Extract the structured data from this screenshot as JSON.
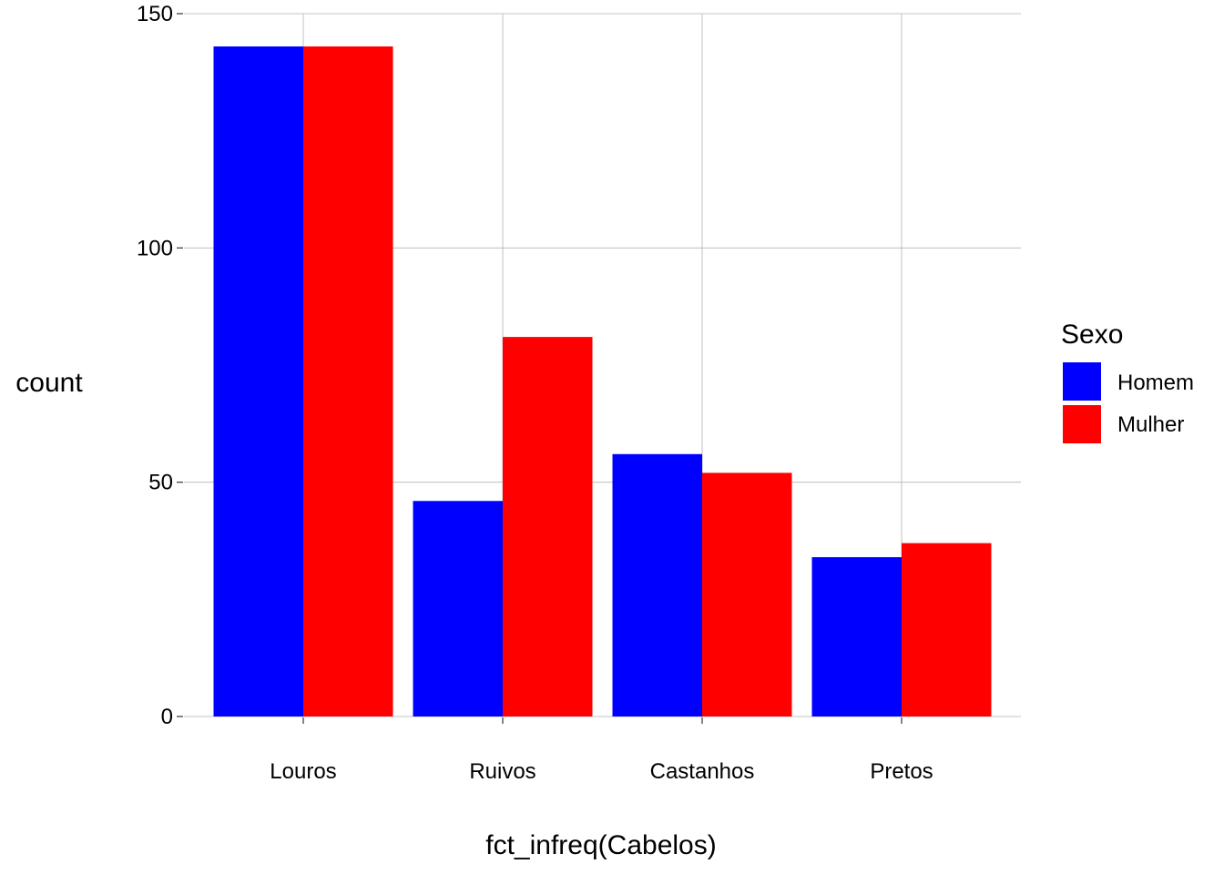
{
  "chart_data": {
    "type": "bar",
    "categories": [
      "Louros",
      "Ruivos",
      "Castanhos",
      "Pretos"
    ],
    "series": [
      {
        "name": "Homem",
        "values": [
          143,
          46,
          56,
          34
        ],
        "color": "#0000ff"
      },
      {
        "name": "Mulher",
        "values": [
          143,
          81,
          52,
          37
        ],
        "color": "#ff0000"
      }
    ],
    "xlabel": "fct_infreq(Cabelos)",
    "ylabel": "count",
    "ylim": [
      0,
      150
    ],
    "yticks": [
      0,
      50,
      100,
      150
    ],
    "grid": true,
    "legend": {
      "title": "Sexo",
      "placement": "right"
    }
  }
}
